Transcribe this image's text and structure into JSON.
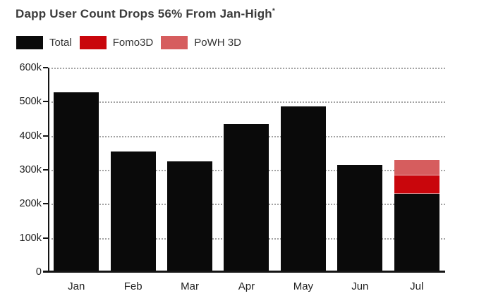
{
  "page": {
    "background": "#ffffff"
  },
  "header": {
    "title": "Dapp User Count Drops 56% From Jan-High",
    "title_note_marker": "*"
  },
  "chart_data": {
    "type": "bar",
    "stacked": true,
    "title": "Dapp User Count Drops 56% From Jan-High*",
    "categories": [
      "Jan",
      "Feb",
      "Mar",
      "Apr",
      "May",
      "Jun",
      "Jul"
    ],
    "series": [
      {
        "name": "Total",
        "color": "#0a0a0a",
        "values": [
          527000,
          353000,
          325000,
          435000,
          487000,
          315000,
          230000
        ]
      },
      {
        "name": "Fomo3D",
        "color": "#c9060c",
        "values": [
          0,
          0,
          0,
          0,
          0,
          0,
          52000
        ]
      },
      {
        "name": "PoWH 3D",
        "color": "#d65d5e",
        "values": [
          0,
          0,
          0,
          0,
          0,
          0,
          43000
        ]
      }
    ],
    "ylabel": "",
    "xlabel": "",
    "ylim": [
      0,
      600000
    ],
    "ytick_step": 100000,
    "ytick_labels_top_to_bottom": [
      "600k",
      "500k",
      "400k",
      "300k",
      "200k",
      "100k",
      "0"
    ],
    "grid": "horizontal-dotted",
    "legend_position": "top-left",
    "axis_color": "#141414",
    "gridline_color": "#a3a3a3",
    "label_color": "#1f1f1f"
  }
}
